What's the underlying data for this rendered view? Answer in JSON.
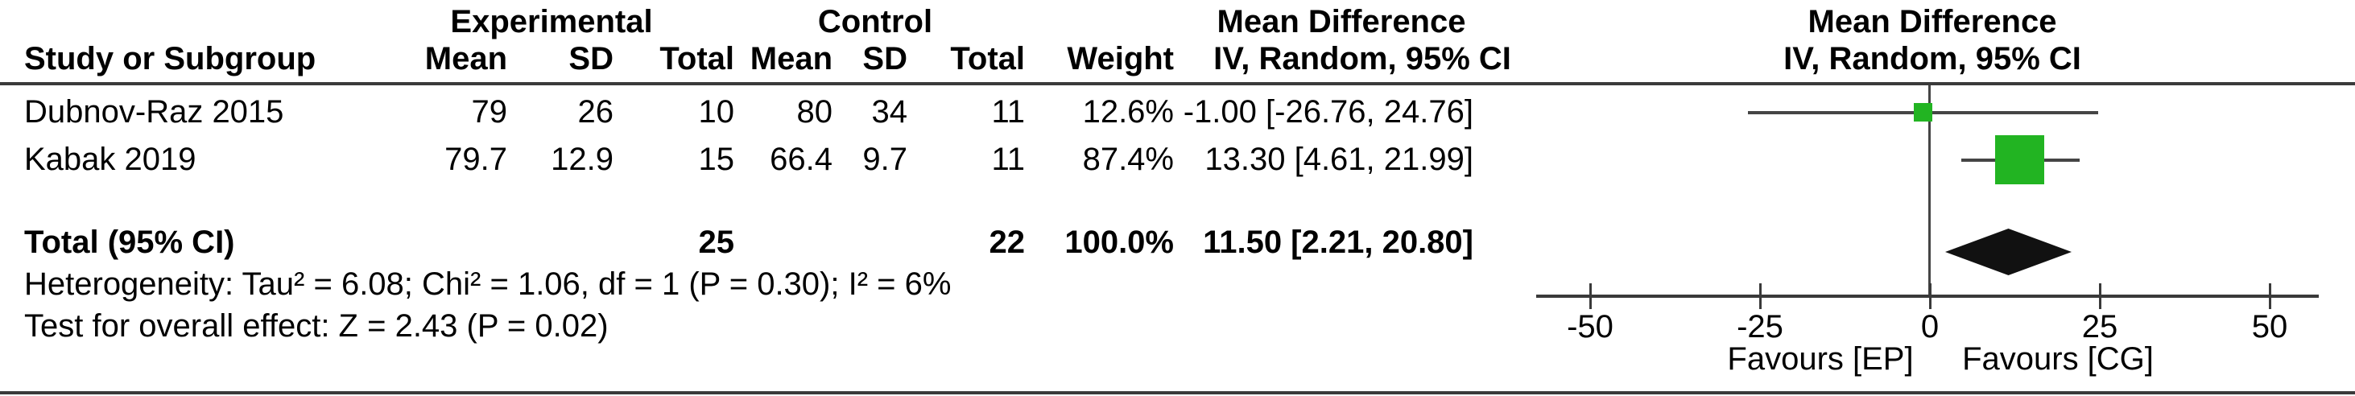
{
  "colors": {
    "green": "#22b422",
    "line": "#454545",
    "rule": "#3a3a3a",
    "diamond": "#111111",
    "text": "#000000"
  },
  "header": {
    "experimental": "Experimental",
    "control": "Control",
    "mean_difference_text": "Mean Difference",
    "mean_difference_plot": "Mean Difference",
    "study": "Study or Subgroup",
    "mean_e": "Mean",
    "sd_e": "SD",
    "total_e": "Total",
    "mean_c": "Mean",
    "sd_c": "SD",
    "total_c": "Total",
    "weight": "Weight",
    "ci_text": "IV, Random, 95% CI",
    "ci_plot": "IV, Random, 95% CI"
  },
  "table": {
    "rows": [
      {
        "study": "Dubnov-Raz 2015",
        "mean_e": "79",
        "sd_e": "26",
        "total_e": "10",
        "mean_c": "80",
        "sd_c": "34",
        "total_c": "11",
        "weight": "12.6%",
        "ci": "-1.00 [-26.76, 24.76]"
      },
      {
        "study": "Kabak 2019",
        "mean_e": "79.7",
        "sd_e": "12.9",
        "total_e": "15",
        "mean_c": "66.4",
        "sd_c": "9.7",
        "total_c": "11",
        "weight": "87.4%",
        "ci": "13.30 [4.61, 21.99]"
      }
    ],
    "total_row": {
      "label": "Total (95% CI)",
      "total_e": "25",
      "total_c": "22",
      "weight": "100.0%",
      "ci": "11.50 [2.21, 20.80]"
    },
    "footnotes": [
      "Heterogeneity: Tau² = 6.08; Chi² = 1.06, df = 1 (P = 0.30); I² = 6%",
      "Test for overall effect: Z = 2.43 (P = 0.02)"
    ]
  },
  "chart_data": {
    "type": "forest",
    "title": "Mean Difference, IV, Random, 95% CI",
    "axis": {
      "ticks": [
        -50,
        -25,
        0,
        25,
        50
      ],
      "tick_labels": [
        "-50",
        "-25",
        "0",
        "25",
        "50"
      ],
      "xlim": [
        -57,
        57
      ],
      "zero_line": 0,
      "left_label": "Favours [EP]",
      "right_label": "Favours [CG]"
    },
    "studies": [
      {
        "name": "Dubnov-Raz 2015",
        "md": -1.0,
        "ci_low": -26.76,
        "ci_high": 24.76,
        "weight_pct": 12.6,
        "marker": "green-square"
      },
      {
        "name": "Kabak 2019",
        "md": 13.3,
        "ci_low": 4.61,
        "ci_high": 21.99,
        "weight_pct": 87.4,
        "marker": "green-square"
      }
    ],
    "total": {
      "label": "Total (95% CI)",
      "md": 11.5,
      "ci_low": 2.21,
      "ci_high": 20.8,
      "marker": "black-diamond"
    }
  }
}
